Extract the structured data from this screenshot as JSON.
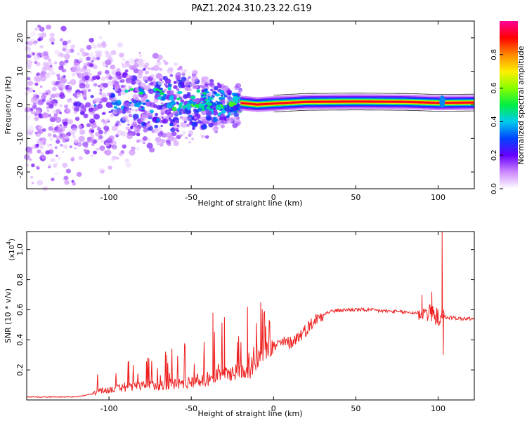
{
  "title": "PAZ1.2024.310.23.22.G19",
  "chart_data": [
    {
      "type": "heatmap",
      "xlabel": "Height of straight line (km)",
      "ylabel": "Frequency (Hz)",
      "xlim": [
        -150,
        122
      ],
      "ylim": [
        -25,
        25
      ],
      "xticks": [
        -100,
        -50,
        0,
        50,
        100
      ],
      "yticks": [
        -20,
        -10,
        0,
        10,
        20
      ],
      "track": [
        {
          "x": -28,
          "y": 1.8
        },
        {
          "x": -20,
          "y": 0.6
        },
        {
          "x": -10,
          "y": 0.1
        },
        {
          "x": 0,
          "y": 0.4
        },
        {
          "x": 20,
          "y": 0.9
        },
        {
          "x": 50,
          "y": 1.0
        },
        {
          "x": 80,
          "y": 0.9
        },
        {
          "x": 100,
          "y": 0.6
        },
        {
          "x": 122,
          "y": 0.7
        }
      ],
      "colorbar": {
        "label": "Normalized spectral amplitude",
        "range": [
          0,
          1
        ],
        "ticks": [
          0.0,
          0.2,
          0.4,
          0.6,
          0.8
        ],
        "tick_labels": [
          "0.0",
          "0.2",
          "0.4",
          "0.6",
          "0.8"
        ],
        "colors": [
          "#ffffff",
          "#cc88ff",
          "#6600ff",
          "#0044ff",
          "#00ccee",
          "#00ee44",
          "#88ff00",
          "#ffee00",
          "#ff8800",
          "#ff0000",
          "#ff0099"
        ]
      }
    },
    {
      "type": "line",
      "xlabel": "Height of straight line (km)",
      "ylabel": "SNR (10 * v/v)",
      "y_multiplier": "(x10",
      "y_multiplier_exp": "4",
      "xlim": [
        -150,
        122
      ],
      "ylim": [
        0,
        1.12
      ],
      "xticks": [
        -100,
        -50,
        0,
        50,
        100
      ],
      "yticks": [
        0.2,
        0.4,
        0.6,
        0.8,
        1.0
      ],
      "color": "#ee2222",
      "envelope": [
        {
          "x": -150,
          "y": 0.02
        },
        {
          "x": -120,
          "y": 0.02
        },
        {
          "x": -110,
          "y": 0.04
        },
        {
          "x": -100,
          "y": 0.06
        },
        {
          "x": -80,
          "y": 0.08
        },
        {
          "x": -60,
          "y": 0.09
        },
        {
          "x": -40,
          "y": 0.12
        },
        {
          "x": -25,
          "y": 0.16
        },
        {
          "x": -15,
          "y": 0.18
        },
        {
          "x": -12,
          "y": 0.24
        },
        {
          "x": -5,
          "y": 0.32
        },
        {
          "x": 0,
          "y": 0.35
        },
        {
          "x": 5,
          "y": 0.38
        },
        {
          "x": 10,
          "y": 0.38
        },
        {
          "x": 15,
          "y": 0.42
        },
        {
          "x": 20,
          "y": 0.47
        },
        {
          "x": 25,
          "y": 0.53
        },
        {
          "x": 30,
          "y": 0.57
        },
        {
          "x": 35,
          "y": 0.59
        },
        {
          "x": 45,
          "y": 0.6
        },
        {
          "x": 55,
          "y": 0.6
        },
        {
          "x": 70,
          "y": 0.59
        },
        {
          "x": 85,
          "y": 0.58
        },
        {
          "x": 95,
          "y": 0.58
        },
        {
          "x": 100,
          "y": 0.55
        },
        {
          "x": 105,
          "y": 0.55
        },
        {
          "x": 115,
          "y": 0.54
        },
        {
          "x": 122,
          "y": 0.54
        }
      ],
      "peaks": [
        {
          "x": 102.5,
          "y": 1.12
        },
        {
          "x": 103,
          "y": 0.3
        },
        {
          "x": 96,
          "y": 0.72
        },
        {
          "x": 90,
          "y": 0.7
        },
        {
          "x": -16,
          "y": 0.62
        },
        {
          "x": -8,
          "y": 0.65
        },
        {
          "x": -37,
          "y": 0.58
        },
        {
          "x": -30,
          "y": 0.55
        },
        {
          "x": -88,
          "y": 0.26
        },
        {
          "x": -65,
          "y": 0.3
        }
      ]
    }
  ]
}
